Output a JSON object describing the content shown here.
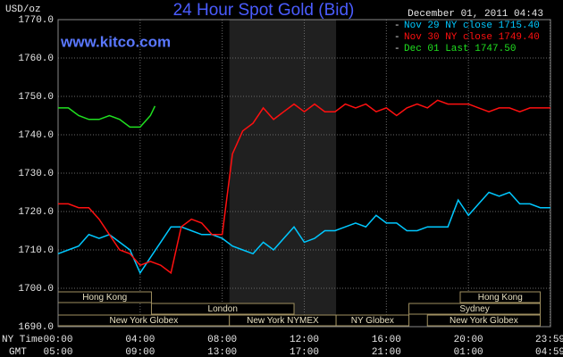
{
  "chart_data": {
    "type": "line",
    "title": "24 Hour Spot Gold (Bid)",
    "y_label": "USD/oz",
    "watermark": "www.kitco.com",
    "timestamp": "December 01, 2011 04:43",
    "x_label": "NY Time",
    "x2_label": "GMT",
    "xlim": [
      0,
      24
    ],
    "xticks": [
      {
        "value": 0,
        "label": "00:00"
      },
      {
        "value": 4,
        "label": "04:00"
      },
      {
        "value": 8,
        "label": "08:00"
      },
      {
        "value": 12,
        "label": "12:00"
      },
      {
        "value": 16,
        "label": "16:00"
      },
      {
        "value": 20,
        "label": "20:00"
      },
      {
        "value": 23.98,
        "label": "23:59"
      }
    ],
    "x2ticks": [
      {
        "value": 0,
        "label": "05:00"
      },
      {
        "value": 4,
        "label": "09:00"
      },
      {
        "value": 8,
        "label": "13:00"
      },
      {
        "value": 12,
        "label": "17:00"
      },
      {
        "value": 16,
        "label": "21:00"
      },
      {
        "value": 20,
        "label": "01:00"
      },
      {
        "value": 23.98,
        "label": "04:59"
      }
    ],
    "ylim": [
      1690,
      1770
    ],
    "yticks": [
      {
        "value": 1690,
        "label": "1690.0"
      },
      {
        "value": 1700,
        "label": "1700.0"
      },
      {
        "value": 1710,
        "label": "1710.0"
      },
      {
        "value": 1720,
        "label": "1720.0"
      },
      {
        "value": 1730,
        "label": "1730.0"
      },
      {
        "value": 1740,
        "label": "1740.0"
      },
      {
        "value": 1750,
        "label": "1750.0"
      },
      {
        "value": 1760,
        "label": "1760.0"
      },
      {
        "value": 1770,
        "label": "1770.0"
      }
    ],
    "grid": true,
    "shaded": [
      8.35,
      13.55
    ],
    "sessions": [
      [
        {
          "label": "Hong Kong",
          "start": 0,
          "end": 4.55
        },
        {
          "label": "Hong Kong",
          "start": 19.6,
          "end": 23.5
        }
      ],
      [
        {
          "label": "London",
          "start": 4.55,
          "end": 11.5
        },
        {
          "label": "Sydney",
          "start": 17.1,
          "end": 23.5
        }
      ],
      [
        {
          "label": "New York Globex",
          "start": 0,
          "end": 8.35
        },
        {
          "label": "New York NYMEX",
          "start": 8.35,
          "end": 13.55
        },
        {
          "label": "NY Globex",
          "start": 13.55,
          "end": 17.1
        },
        {
          "label": "New York Globex",
          "start": 18,
          "end": 23.5
        }
      ]
    ],
    "series": [
      {
        "name": "Nov 29 NY close 1715.40",
        "color": "#00c8ff",
        "x": [
          0,
          0.5,
          1,
          1.5,
          2,
          2.5,
          3,
          3.5,
          4,
          4.5,
          5,
          5.5,
          6,
          6.5,
          7,
          7.5,
          8,
          8.5,
          9,
          9.5,
          10,
          10.5,
          11,
          11.5,
          12,
          12.5,
          13,
          13.5,
          14,
          14.5,
          15,
          15.5,
          16,
          16.5,
          17,
          17.5,
          18,
          18.5,
          19,
          19.5,
          20,
          20.5,
          21,
          21.5,
          22,
          22.5,
          23,
          23.5,
          24
        ],
        "values": [
          1709,
          1710,
          1711,
          1714,
          1713,
          1714,
          1712,
          1710,
          1704,
          1708,
          1712,
          1716,
          1716,
          1715,
          1714,
          1714,
          1713,
          1711,
          1710,
          1709,
          1712,
          1710,
          1713,
          1716,
          1712,
          1713,
          1715,
          1715,
          1716,
          1717,
          1716,
          1719,
          1717,
          1717,
          1715,
          1715,
          1716,
          1716,
          1716,
          1723,
          1719,
          1722,
          1725,
          1724,
          1725,
          1722,
          1722,
          1721,
          1721
        ]
      },
      {
        "name": "Nov 30 NY close 1749.40",
        "color": "#ff1010",
        "x": [
          0,
          0.5,
          1,
          1.5,
          2,
          2.5,
          3,
          3.5,
          4,
          4.5,
          5,
          5.5,
          6,
          6.5,
          7,
          7.5,
          8,
          8.5,
          9,
          9.5,
          10,
          10.5,
          11,
          11.5,
          12,
          12.5,
          13,
          13.5,
          14,
          14.5,
          15,
          15.5,
          16,
          16.5,
          17,
          17.5,
          18,
          18.5,
          19,
          19.5,
          20,
          20.5,
          21,
          21.5,
          22,
          22.5,
          23,
          23.5,
          24
        ],
        "values": [
          1722,
          1722,
          1721,
          1721,
          1718,
          1714,
          1710,
          1709,
          1706,
          1707,
          1706,
          1704,
          1716,
          1718,
          1717,
          1714,
          1714,
          1735,
          1741,
          1743,
          1747,
          1744,
          1746,
          1748,
          1746,
          1748,
          1746,
          1746,
          1748,
          1747,
          1748,
          1746,
          1747,
          1745,
          1747,
          1748,
          1747,
          1749,
          1748,
          1748,
          1748,
          1747,
          1746,
          1747,
          1747,
          1746,
          1747,
          1747,
          1747
        ]
      },
      {
        "name": "Dec 01 Last 1747.50",
        "color": "#20e020",
        "x": [
          0,
          0.5,
          1,
          1.5,
          2,
          2.5,
          3,
          3.5,
          4,
          4.5,
          4.72
        ],
        "values": [
          1747,
          1747,
          1745,
          1744,
          1744,
          1745,
          1744,
          1742,
          1742,
          1745,
          1747.5
        ]
      }
    ]
  }
}
